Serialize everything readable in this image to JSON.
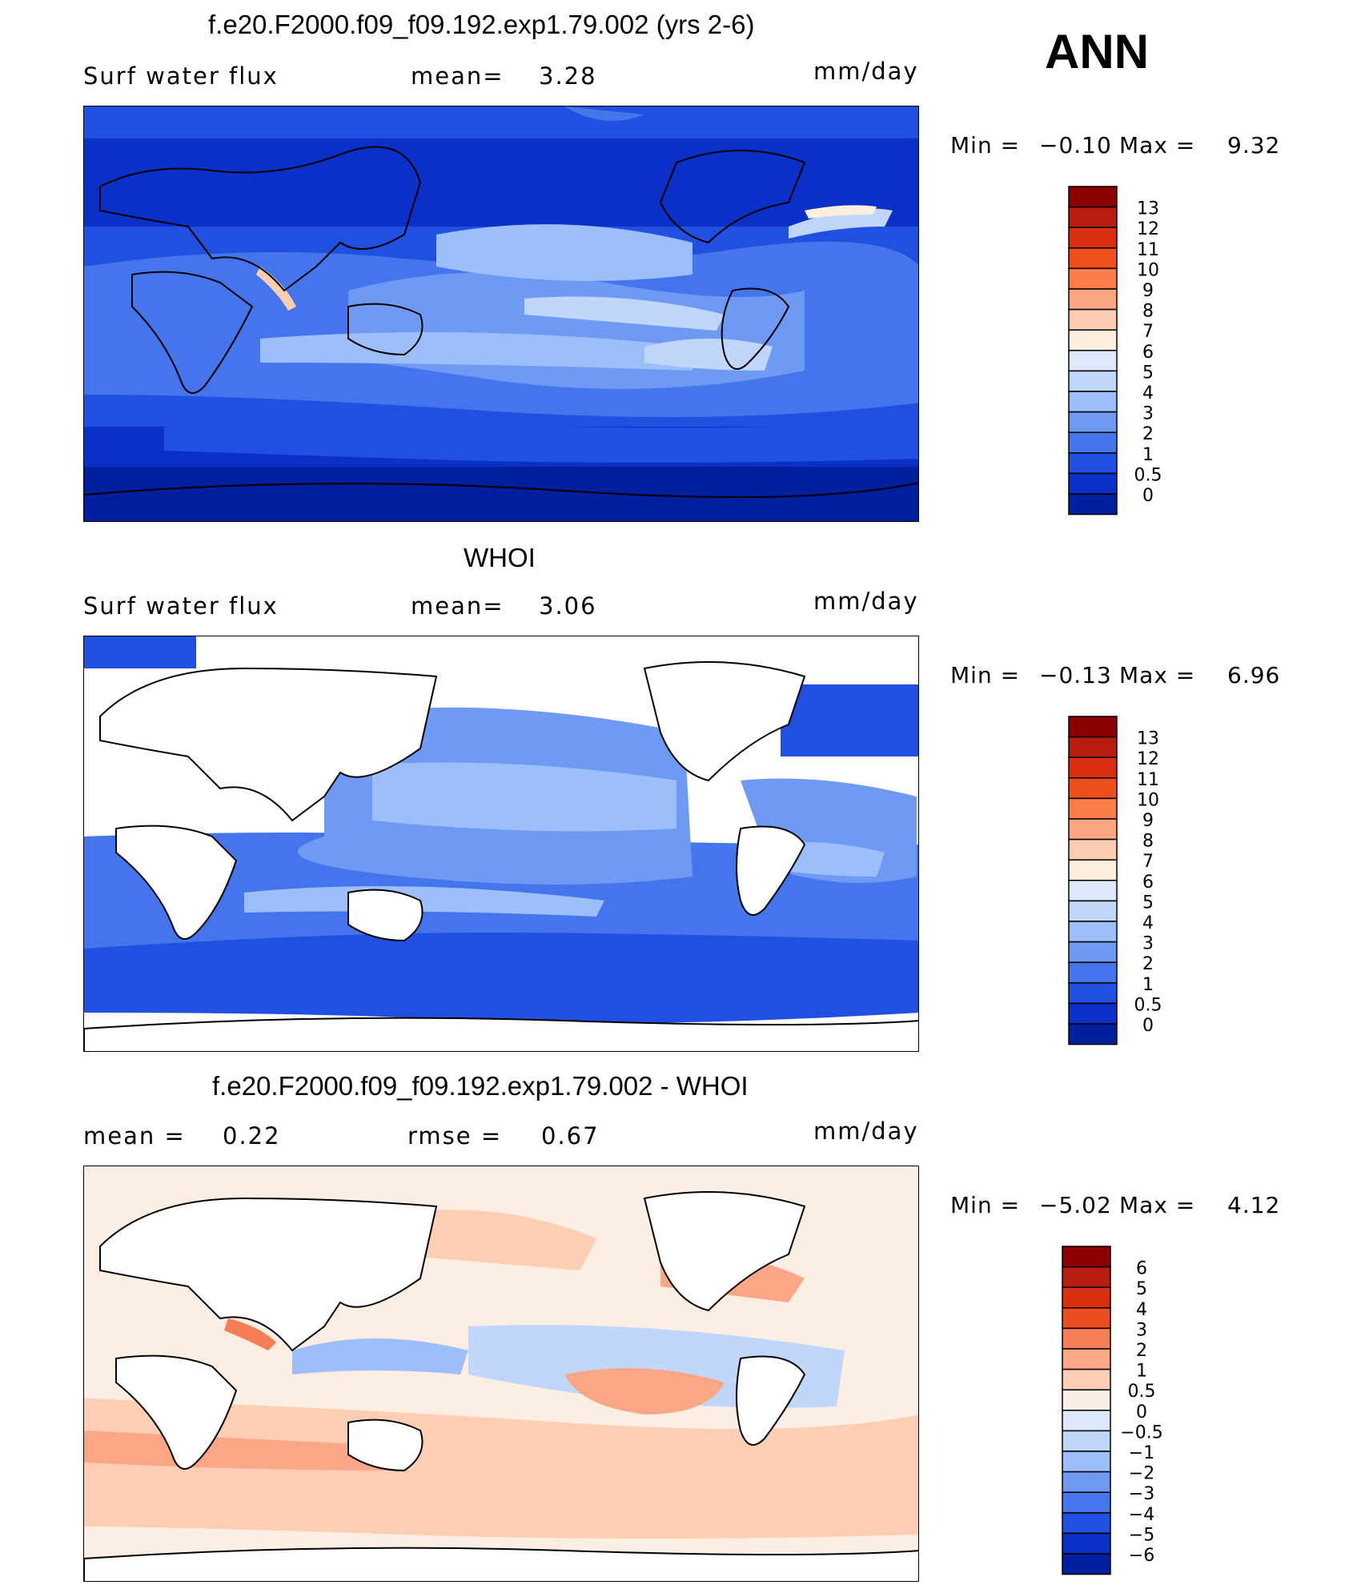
{
  "season": "ANN",
  "panels": [
    {
      "title": "f.e20.F2000.f09_f09.192.exp1.79.002 (yrs 2-6)",
      "left_label": "Surf  water  flux",
      "mid_label": "mean=",
      "mid_value": "3.28",
      "units": "mm/day",
      "min_label": "Min  =",
      "min_value": "−0.10",
      "max_label": "Max  =",
      "max_value": "9.32"
    },
    {
      "title": "WHOI",
      "left_label": "Surf  water  flux",
      "mid_label": "mean=",
      "mid_value": "3.06",
      "units": "mm/day",
      "min_label": "Min  =",
      "min_value": "−0.13",
      "max_label": "Max  =",
      "max_value": "6.96"
    },
    {
      "title": "f.e20.F2000.f09_f09.192.exp1.79.002 - WHOI",
      "left_label": "mean  =",
      "left_value": "0.22",
      "mid_label": "rmse  =",
      "mid_value": "0.67",
      "units": "mm/day",
      "min_label": "Min  =",
      "min_value": "−5.02",
      "max_label": "Max  =",
      "max_value": "4.12"
    }
  ],
  "chart_data": [
    {
      "type": "heatmap",
      "title": "f.e20.F2000.f09_f09.192.exp1.79.002 (yrs 2-6)",
      "variable": "Surf  water  flux",
      "units": "mm/day",
      "mean": 3.28,
      "min": -0.1,
      "max": 9.32,
      "colorbar_levels": [
        "13",
        "12",
        "11",
        "10",
        "9",
        "8",
        "7",
        "6",
        "5",
        "4",
        "3",
        "2",
        "1",
        "0.5",
        "0"
      ],
      "colorbar_colors": [
        "#8b0000",
        "#b71c0c",
        "#d83010",
        "#f0501f",
        "#fb7e4a",
        "#fca581",
        "#fdcdb1",
        "#fdeedd",
        "#dde9fb",
        "#c0d6fb",
        "#9dbff9",
        "#6e9af3",
        "#4575ec",
        "#2150e0",
        "#0a30c8",
        "#001f9c"
      ],
      "grid": false
    },
    {
      "type": "heatmap",
      "title": "WHOI",
      "variable": "Surf  water  flux",
      "units": "mm/day",
      "mean": 3.06,
      "min": -0.13,
      "max": 6.96,
      "colorbar_levels": [
        "13",
        "12",
        "11",
        "10",
        "9",
        "8",
        "7",
        "6",
        "5",
        "4",
        "3",
        "2",
        "1",
        "0.5",
        "0"
      ],
      "colorbar_colors": [
        "#8b0000",
        "#b71c0c",
        "#d83010",
        "#f0501f",
        "#fb7e4a",
        "#fca581",
        "#fdcdb1",
        "#fdeedd",
        "#dde9fb",
        "#c0d6fb",
        "#9dbff9",
        "#6e9af3",
        "#4575ec",
        "#2150e0",
        "#0a30c8",
        "#001f9c"
      ],
      "grid": false
    },
    {
      "type": "heatmap",
      "title": "f.e20.F2000.f09_f09.192.exp1.79.002 - WHOI",
      "units": "mm/day",
      "mean": 0.22,
      "rmse": 0.67,
      "min": -5.02,
      "max": 4.12,
      "colorbar_levels": [
        "6",
        "5",
        "4",
        "3",
        "2",
        "1",
        "0.5",
        "0",
        "−0.5",
        "−1",
        "−2",
        "−3",
        "−4",
        "−5",
        "−6"
      ],
      "colorbar_colors": [
        "#8b0000",
        "#b71c0c",
        "#d83010",
        "#ee4d22",
        "#f77d55",
        "#fba687",
        "#fdcdb4",
        "#fdeee3",
        "#dde9fb",
        "#c0d6fb",
        "#9dbff9",
        "#6e9af3",
        "#4575ec",
        "#2150e0",
        "#0a30c8",
        "#001f9c"
      ],
      "grid": false
    }
  ],
  "colors": {
    "ocean_deep": "#0a30c8",
    "ocean_mid": "#4575ec",
    "ocean_light": "#9dbff9",
    "warm": "#fca581",
    "coast": "#000000"
  }
}
